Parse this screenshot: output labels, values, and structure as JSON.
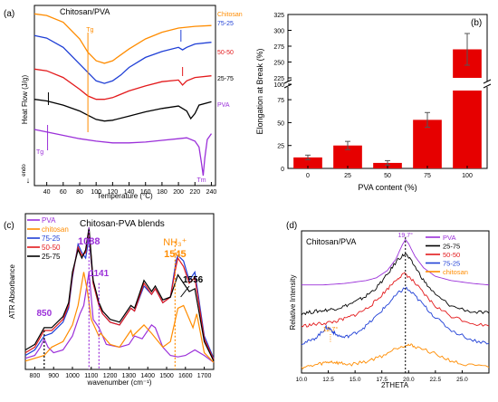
{
  "chart_data": [
    {
      "panel_label": "(a)",
      "type": "line",
      "title": "Chitosan/PVA",
      "xlabel": "Temperature (°C)",
      "ylabel": "Heat Flow (J/g)",
      "endo_label": "endo",
      "endo_arrow": "↓",
      "xlim": [
        25,
        245
      ],
      "xticks": [
        40,
        60,
        80,
        100,
        120,
        140,
        160,
        180,
        200,
        220,
        240
      ],
      "annotations": [
        "Tg",
        "Tg",
        "Tm"
      ],
      "series": [
        {
          "name": "Chitosan",
          "color": "#ff8c00",
          "x": [
            25,
            40,
            60,
            80,
            90,
            100,
            110,
            120,
            140,
            160,
            180,
            200,
            220,
            240
          ],
          "y": [
            2,
            1.8,
            1.0,
            -1.0,
            -2.6,
            -3.6,
            -3.9,
            -3.6,
            -2.2,
            -1.0,
            -0.2,
            0.3,
            0.5,
            0.6
          ]
        },
        {
          "name": "75-25",
          "color": "#1f3fd6",
          "x": [
            25,
            40,
            60,
            80,
            100,
            110,
            120,
            130,
            140,
            160,
            180,
            200,
            205,
            210,
            220,
            240
          ],
          "y": [
            -0.6,
            -0.9,
            -2.0,
            -4.0,
            -6.0,
            -6.3,
            -6.0,
            -5.3,
            -4.4,
            -3.2,
            -2.5,
            -2.0,
            -2.3,
            -2.0,
            -1.6,
            -1.4
          ]
        },
        {
          "name": "50-50",
          "color": "#e31a1c",
          "x": [
            25,
            40,
            60,
            80,
            90,
            100,
            110,
            120,
            140,
            160,
            180,
            200,
            205,
            210,
            220,
            240
          ],
          "y": [
            -4.6,
            -4.8,
            -5.6,
            -7.0,
            -7.8,
            -8.2,
            -8.2,
            -8.0,
            -7.2,
            -6.6,
            -6.1,
            -5.9,
            -6.5,
            -6.0,
            -5.6,
            -5.4
          ]
        },
        {
          "name": "25-75",
          "color": "#000000",
          "x": [
            25,
            40,
            60,
            80,
            90,
            100,
            110,
            120,
            140,
            160,
            180,
            200,
            210,
            215,
            220,
            225,
            240
          ],
          "y": [
            -8.2,
            -8.4,
            -8.9,
            -9.6,
            -10.1,
            -10.6,
            -10.8,
            -10.7,
            -10.2,
            -9.7,
            -9.3,
            -9.0,
            -9.6,
            -10.5,
            -9.9,
            -8.9,
            -8.5
          ]
        },
        {
          "name": "PVA",
          "color": "#9b30d9",
          "x": [
            25,
            40,
            60,
            80,
            100,
            120,
            140,
            160,
            180,
            200,
            210,
            220,
            225,
            228,
            230,
            232,
            235,
            240
          ],
          "y": [
            -11.8,
            -12.1,
            -12.5,
            -12.9,
            -13.2,
            -13.4,
            -13.4,
            -13.3,
            -13.1,
            -12.9,
            -12.8,
            -13.2,
            -13.9,
            -15.8,
            -17.3,
            -15.2,
            -13.0,
            -12.3
          ]
        }
      ]
    },
    {
      "panel_label": "(b)",
      "type": "bar",
      "categories": [
        "0",
        "25",
        "50",
        "75",
        "100"
      ],
      "values": [
        12,
        25,
        6,
        53,
        270
      ],
      "errors": [
        2.5,
        4.5,
        2.5,
        8,
        25
      ],
      "xlabel": "PVA content (%)",
      "ylabel": "Elongation at Break (%)",
      "yticks": [
        "0",
        "25",
        "50",
        "75",
        "100",
        "225",
        "250",
        "275",
        "300",
        "325"
      ],
      "axis_break": [
        85,
        225
      ],
      "bar_color": "#e60000"
    },
    {
      "panel_label": "(c)",
      "type": "line",
      "title": "Chitosan-PVA blends",
      "xlabel": "wavenumber (cm⁻¹)",
      "ylabel": "ATR Absorbance",
      "xlim": [
        750,
        1750
      ],
      "xticks": [
        800,
        900,
        1000,
        1100,
        1200,
        1300,
        1400,
        1500,
        1600,
        1700
      ],
      "peak_labels": [
        "850",
        "1088",
        "1141",
        "NH₃⁺",
        "1545",
        "1556"
      ],
      "series": [
        {
          "name": "PVA",
          "color": "#9b30d9",
          "x": [
            750,
            800,
            830,
            850,
            870,
            900,
            950,
            1000,
            1040,
            1060,
            1088,
            1110,
            1141,
            1180,
            1250,
            1300,
            1330,
            1370,
            1420,
            1440,
            1480,
            1520,
            1560,
            1600,
            1650,
            1700,
            1750
          ],
          "y": [
            0.08,
            0.1,
            0.16,
            0.22,
            0.16,
            0.12,
            0.14,
            0.24,
            0.4,
            0.46,
            0.7,
            0.36,
            0.3,
            0.18,
            0.16,
            0.18,
            0.24,
            0.22,
            0.32,
            0.3,
            0.16,
            0.1,
            0.09,
            0.1,
            0.14,
            0.1,
            0.05
          ]
        },
        {
          "name": "chitosan",
          "color": "#ff8c00",
          "x": [
            750,
            800,
            850,
            890,
            950,
            1000,
            1030,
            1060,
            1080,
            1100,
            1140,
            1150,
            1200,
            1250,
            1310,
            1320,
            1380,
            1420,
            1480,
            1520,
            1560,
            1590,
            1640,
            1660,
            1700,
            1750
          ],
          "y": [
            0.06,
            0.08,
            0.1,
            0.16,
            0.2,
            0.32,
            0.46,
            0.7,
            0.56,
            0.36,
            0.24,
            0.26,
            0.18,
            0.16,
            0.28,
            0.24,
            0.32,
            0.26,
            0.16,
            0.2,
            0.44,
            0.46,
            0.3,
            0.4,
            0.12,
            0.05
          ]
        },
        {
          "name": "75-25",
          "color": "#1f3fd6",
          "x": [
            750,
            800,
            850,
            890,
            950,
            980,
            1000,
            1030,
            1050,
            1070,
            1088,
            1110,
            1141,
            1160,
            1200,
            1250,
            1310,
            1330,
            1380,
            1420,
            1440,
            1480,
            1520,
            1550,
            1560,
            1590,
            1620,
            1650,
            1700,
            1750
          ],
          "y": [
            0.1,
            0.14,
            0.24,
            0.26,
            0.34,
            0.44,
            0.66,
            0.9,
            0.84,
            0.8,
            0.95,
            0.62,
            0.46,
            0.4,
            0.34,
            0.32,
            0.44,
            0.42,
            0.6,
            0.54,
            0.58,
            0.48,
            0.52,
            0.78,
            0.82,
            0.78,
            0.64,
            0.7,
            0.24,
            0.08
          ]
        },
        {
          "name": "50-50",
          "color": "#e31a1c",
          "x": [
            750,
            800,
            850,
            890,
            950,
            980,
            1000,
            1030,
            1050,
            1070,
            1088,
            1110,
            1141,
            1160,
            1200,
            1250,
            1310,
            1330,
            1380,
            1420,
            1440,
            1480,
            1520,
            1550,
            1560,
            1590,
            1620,
            1650,
            1700,
            1750
          ],
          "y": [
            0.12,
            0.16,
            0.28,
            0.28,
            0.36,
            0.46,
            0.68,
            0.88,
            0.82,
            0.84,
            1.0,
            0.62,
            0.46,
            0.4,
            0.34,
            0.32,
            0.44,
            0.42,
            0.62,
            0.54,
            0.58,
            0.48,
            0.52,
            0.74,
            0.8,
            0.74,
            0.62,
            0.66,
            0.22,
            0.07
          ]
        },
        {
          "name": "25-75",
          "color": "#000000",
          "x": [
            750,
            800,
            850,
            890,
            950,
            980,
            1000,
            1030,
            1050,
            1070,
            1088,
            1110,
            1141,
            1160,
            1200,
            1250,
            1310,
            1330,
            1380,
            1420,
            1440,
            1480,
            1520,
            1550,
            1560,
            1590,
            1620,
            1650,
            1700,
            1750
          ],
          "y": [
            0.14,
            0.18,
            0.3,
            0.3,
            0.38,
            0.48,
            0.7,
            0.86,
            0.8,
            0.86,
            1.02,
            0.64,
            0.48,
            0.42,
            0.36,
            0.34,
            0.46,
            0.44,
            0.64,
            0.56,
            0.6,
            0.5,
            0.52,
            0.64,
            0.68,
            0.62,
            0.56,
            0.58,
            0.2,
            0.06
          ]
        }
      ]
    },
    {
      "panel_label": "(d)",
      "type": "line",
      "title": "Chitosan/PVA",
      "xlabel": "2THETA",
      "ylabel": "Relative Intensity",
      "xlim": [
        10,
        27.5
      ],
      "xticks": [
        "10.0",
        "12.5",
        "15.0",
        "17.5",
        "20.0",
        "22.5",
        "25.0"
      ],
      "peak_labels": [
        "19.7°",
        "12.7°"
      ],
      "series": [
        {
          "name": "PVA",
          "color": "#9b30d9",
          "x": [
            10,
            12,
            14,
            16,
            17,
            18,
            18.8,
            19.4,
            19.7,
            20.0,
            20.6,
            21.4,
            22.5,
            24,
            26,
            27.5
          ],
          "y": [
            0.6,
            0.6,
            0.61,
            0.63,
            0.65,
            0.7,
            0.78,
            0.88,
            0.92,
            0.89,
            0.8,
            0.72,
            0.66,
            0.63,
            0.61,
            0.6
          ]
        },
        {
          "name": "25-75",
          "color": "#000000",
          "x": [
            10,
            11,
            12,
            13,
            14,
            15,
            16,
            17,
            18,
            19,
            19.7,
            20.5,
            21.5,
            22.5,
            24,
            26,
            27.5
          ],
          "y": [
            0.4,
            0.41,
            0.42,
            0.43,
            0.45,
            0.48,
            0.52,
            0.58,
            0.67,
            0.78,
            0.82,
            0.74,
            0.62,
            0.53,
            0.45,
            0.41,
            0.4
          ]
        },
        {
          "name": "50-50",
          "color": "#e31a1c",
          "x": [
            10,
            11,
            12,
            13,
            14,
            15,
            16,
            17,
            18,
            19,
            19.7,
            20.5,
            21.5,
            22.5,
            24,
            26,
            27.5
          ],
          "y": [
            0.31,
            0.32,
            0.33,
            0.34,
            0.36,
            0.39,
            0.43,
            0.49,
            0.57,
            0.65,
            0.68,
            0.62,
            0.53,
            0.45,
            0.38,
            0.33,
            0.31
          ]
        },
        {
          "name": "75-25",
          "color": "#1f3fd6",
          "x": [
            10,
            11,
            11.8,
            12.3,
            12.7,
            13.2,
            14,
            15,
            16,
            17,
            18,
            19,
            19.7,
            20.5,
            21.5,
            22.5,
            24,
            26,
            27.5
          ],
          "y": [
            0.19,
            0.21,
            0.26,
            0.3,
            0.29,
            0.25,
            0.23,
            0.26,
            0.31,
            0.38,
            0.46,
            0.54,
            0.58,
            0.53,
            0.45,
            0.37,
            0.28,
            0.21,
            0.19
          ]
        },
        {
          "name": "chitosan",
          "color": "#ff8c00",
          "x": [
            10,
            11,
            12,
            12.7,
            13.5,
            14.5,
            16,
            17.5,
            19,
            19.8,
            20.5,
            22,
            23.5,
            25,
            27.5
          ],
          "y": [
            0.02,
            0.03,
            0.05,
            0.06,
            0.05,
            0.04,
            0.06,
            0.1,
            0.16,
            0.18,
            0.17,
            0.13,
            0.08,
            0.04,
            0.02
          ]
        }
      ]
    }
  ]
}
